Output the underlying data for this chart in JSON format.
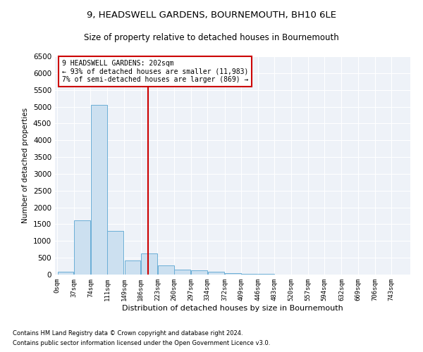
{
  "title": "9, HEADSWELL GARDENS, BOURNEMOUTH, BH10 6LE",
  "subtitle": "Size of property relative to detached houses in Bournemouth",
  "xlabel": "Distribution of detached houses by size in Bournemouth",
  "ylabel": "Number of detached properties",
  "bin_labels": [
    "0sqm",
    "37sqm",
    "74sqm",
    "111sqm",
    "149sqm",
    "186sqm",
    "223sqm",
    "260sqm",
    "297sqm",
    "334sqm",
    "372sqm",
    "409sqm",
    "446sqm",
    "483sqm",
    "520sqm",
    "557sqm",
    "594sqm",
    "632sqm",
    "669sqm",
    "706sqm",
    "743sqm"
  ],
  "bar_values": [
    80,
    1620,
    5050,
    1300,
    420,
    620,
    280,
    150,
    120,
    80,
    50,
    30,
    20,
    10,
    10,
    8,
    5,
    5,
    3,
    3,
    3
  ],
  "bar_color": "#cce0f0",
  "bar_edge_color": "#6baed6",
  "vline_x": 202,
  "vline_color": "#cc0000",
  "ylim": [
    0,
    6500
  ],
  "yticks": [
    0,
    500,
    1000,
    1500,
    2000,
    2500,
    3000,
    3500,
    4000,
    4500,
    5000,
    5500,
    6000,
    6500
  ],
  "annotation_title": "9 HEADSWELL GARDENS: 202sqm",
  "annotation_line1": "← 93% of detached houses are smaller (11,983)",
  "annotation_line2": "7% of semi-detached houses are larger (869) →",
  "annotation_box_color": "#cc0000",
  "footer1": "Contains HM Land Registry data © Crown copyright and database right 2024.",
  "footer2": "Contains public sector information licensed under the Open Government Licence v3.0.",
  "bg_color": "#eef2f8",
  "grid_color": "#ffffff",
  "bin_width": 37,
  "bin_starts": [
    0,
    37,
    74,
    111,
    149,
    186,
    223,
    260,
    297,
    334,
    372,
    409,
    446,
    483,
    520,
    557,
    594,
    632,
    669,
    706,
    743
  ],
  "fig_width": 6.0,
  "fig_height": 5.0,
  "title_fontsize": 9.5,
  "subtitle_fontsize": 8.5
}
